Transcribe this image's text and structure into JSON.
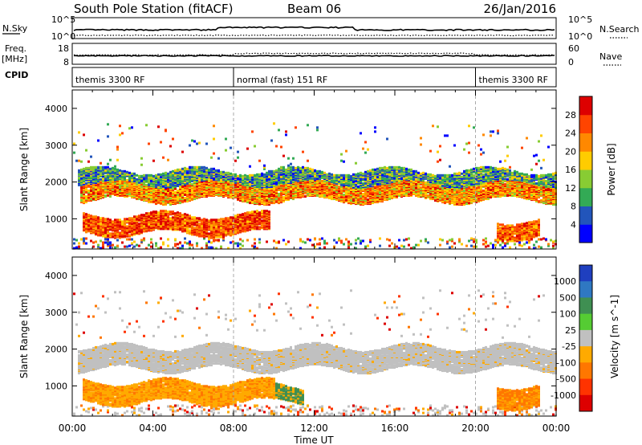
{
  "header": {
    "station": "South Pole Station (fitACF)",
    "beam": "Beam 06",
    "date": "26/Jan/2016"
  },
  "chart_data": [
    {
      "type": "line",
      "name": "noise",
      "y_left_label": "N.Sky",
      "y_left_ticks": [
        "10^5",
        "10^0"
      ],
      "y_right_label": "N.Search",
      "y_right_ticks": [
        "10^5",
        "10^0"
      ]
    },
    {
      "type": "line",
      "name": "frequency",
      "y_left_label": "Freq.",
      "y_left_unit": "[MHz]",
      "y_left_ticks": [
        18,
        8
      ],
      "y_right_label": "Nave",
      "y_right_ticks": [
        60,
        0
      ],
      "freq_mhz": 12.3,
      "nave": 28
    },
    {
      "type": "table",
      "name": "cpid",
      "label": "CPID",
      "segments": [
        {
          "start_h": 0,
          "end_h": 8,
          "text": "themis 3300 RF"
        },
        {
          "start_h": 8,
          "end_h": 20,
          "text": "normal (fast) 151 RF"
        },
        {
          "start_h": 20,
          "end_h": 24,
          "text": "themis 3300 RF"
        }
      ]
    },
    {
      "type": "heatmap",
      "name": "power",
      "ylabel": "Slant Range [km]",
      "yticks": [
        1000,
        2000,
        3000,
        4000
      ],
      "ylim": [
        180,
        4500
      ],
      "xlim": [
        0,
        24
      ],
      "colorbar": {
        "label": "Power [dB]",
        "ticks": [
          4,
          8,
          12,
          16,
          20,
          24,
          28
        ],
        "colors": [
          "#0000ff",
          "#2255bb",
          "#33aa55",
          "#88cc33",
          "#ffcc00",
          "#ff8800",
          "#ff4400",
          "#dd0000"
        ]
      },
      "bands": [
        {
          "range_km": [
            1500,
            1950
          ],
          "start_h": 0.3,
          "end_h": 24,
          "power_db": 20
        },
        {
          "range_km": [
            600,
            1100
          ],
          "start_h": 0.5,
          "end_h": 9.8,
          "power_db": 24
        },
        {
          "range_km": [
            500,
            950
          ],
          "start_h": 21,
          "end_h": 23.2,
          "power_db": 22
        },
        {
          "range_km": [
            1850,
            2300
          ],
          "start_h": 0.2,
          "end_h": 24,
          "power_db": 8
        }
      ]
    },
    {
      "type": "heatmap",
      "name": "velocity",
      "ylabel": "Slant Range [km]",
      "yticks": [
        1000,
        2000,
        3000,
        4000
      ],
      "ylim": [
        180,
        4500
      ],
      "xlim": [
        0,
        24
      ],
      "colorbar": {
        "label": "Velocity [m s^-1]",
        "ticks": [
          1000,
          500,
          100,
          25,
          -25,
          -100,
          -500,
          -1000
        ],
        "colors": [
          "#1f3fbf",
          "#2f78c2",
          "#3f8f52",
          "#55cc33",
          "#c0c0c0",
          "#ffaa00",
          "#ff7700",
          "#ff3300",
          "#dd0000"
        ]
      },
      "bands": [
        {
          "range_km": [
            1450,
            2050
          ],
          "start_h": 0.2,
          "end_h": 24,
          "velocity": 0
        },
        {
          "range_km": [
            550,
            1100
          ],
          "start_h": 0.5,
          "end_h": 10,
          "velocity": -150
        },
        {
          "range_km": [
            600,
            1000
          ],
          "start_h": 9.5,
          "end_h": 11.5,
          "velocity": 150
        },
        {
          "range_km": [
            450,
            1000
          ],
          "start_h": 21,
          "end_h": 23.2,
          "velocity": -300
        }
      ]
    }
  ],
  "x_axis": {
    "tick_labels": [
      "00:00",
      "04:00",
      "08:00",
      "12:00",
      "16:00",
      "20:00",
      "00:00"
    ],
    "label": "Time UT"
  }
}
